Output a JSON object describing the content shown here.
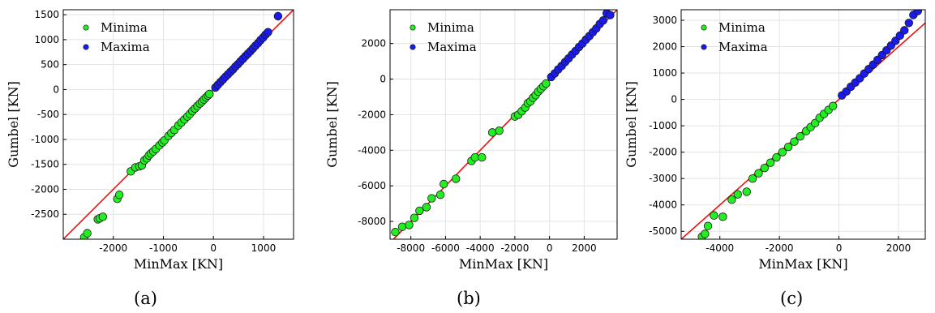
{
  "chart_data": [
    {
      "type": "scatter",
      "caption": "(a)",
      "xlabel": "MinMax [KN]",
      "ylabel": "Gumbel [KN]",
      "xlim": [
        -3000,
        1600
      ],
      "ylim": [
        -3000,
        1600
      ],
      "xticks": [
        -2000,
        -1000,
        0,
        1000
      ],
      "yticks": [
        -2500,
        -2000,
        -1500,
        -1000,
        -500,
        0,
        500,
        1000,
        1500
      ],
      "grid": true,
      "legend": "top-left",
      "reference_line": "y = x",
      "series": [
        {
          "name": "Minima",
          "color": "#22ee22",
          "x": [
            -2580,
            -2520,
            -2310,
            -2270,
            -2210,
            -1920,
            -1880,
            -1650,
            -1560,
            -1480,
            -1430,
            -1380,
            -1330,
            -1290,
            -1250,
            -1200,
            -1150,
            -1080,
            -1020,
            -980,
            -900,
            -840,
            -780,
            -700,
            -640,
            -580,
            -520,
            -470,
            -420,
            -370,
            -320,
            -270,
            -230,
            -190,
            -150,
            -110,
            -80
          ],
          "y": [
            -2960,
            -2880,
            -2600,
            -2580,
            -2550,
            -2190,
            -2110,
            -1640,
            -1560,
            -1540,
            -1520,
            -1420,
            -1380,
            -1320,
            -1280,
            -1240,
            -1190,
            -1120,
            -1060,
            -1020,
            -930,
            -870,
            -810,
            -720,
            -660,
            -600,
            -540,
            -490,
            -430,
            -380,
            -330,
            -280,
            -240,
            -200,
            -160,
            -120,
            -90
          ]
        },
        {
          "name": "Maxima",
          "color": "#1a1aee",
          "x": [
            40,
            90,
            140,
            190,
            240,
            290,
            340,
            390,
            440,
            490,
            540,
            590,
            640,
            690,
            740,
            790,
            840,
            890,
            940,
            990,
            1040,
            1090,
            1290
          ],
          "y": [
            40,
            95,
            150,
            200,
            255,
            305,
            355,
            405,
            460,
            510,
            565,
            615,
            670,
            720,
            770,
            825,
            880,
            930,
            990,
            1040,
            1100,
            1150,
            1470
          ]
        }
      ]
    },
    {
      "type": "scatter",
      "caption": "(b)",
      "xlabel": "MinMax [KN]",
      "ylabel": "Gumbel [KN]",
      "xlim": [
        -9200,
        3900
      ],
      "ylim": [
        -9000,
        3900
      ],
      "xticks": [
        -8000,
        -6000,
        -4000,
        -2000,
        0,
        2000
      ],
      "yticks": [
        -8000,
        -6000,
        -4000,
        -2000,
        0,
        2000
      ],
      "grid": true,
      "legend": "top-left",
      "reference_line": "y = x",
      "series": [
        {
          "name": "Minima",
          "color": "#22ee22",
          "x": [
            -8900,
            -8500,
            -8100,
            -7800,
            -7500,
            -7100,
            -6800,
            -6300,
            -6100,
            -5400,
            -4500,
            -4300,
            -3900,
            -3300,
            -2900,
            -2000,
            -1800,
            -1600,
            -1400,
            -1250,
            -1100,
            -950,
            -800,
            -650,
            -500,
            -350,
            -200
          ],
          "y": [
            -8600,
            -8300,
            -8200,
            -7800,
            -7400,
            -7200,
            -6700,
            -6500,
            -5900,
            -5600,
            -4600,
            -4400,
            -4400,
            -3000,
            -2900,
            -2100,
            -2000,
            -1800,
            -1600,
            -1350,
            -1250,
            -1050,
            -900,
            -700,
            -550,
            -400,
            -250
          ]
        },
        {
          "name": "Maxima",
          "color": "#1a1aee",
          "x": [
            100,
            300,
            500,
            700,
            900,
            1100,
            1300,
            1500,
            1700,
            1900,
            2100,
            2300,
            2500,
            2700,
            2900,
            3100,
            3300,
            3500
          ],
          "y": [
            120,
            320,
            540,
            740,
            960,
            1160,
            1380,
            1580,
            1800,
            2000,
            2220,
            2420,
            2640,
            2850,
            3100,
            3300,
            3700,
            3600
          ]
        }
      ]
    },
    {
      "type": "scatter",
      "caption": "(c)",
      "xlabel": "MinMax [KN]",
      "ylabel": "Gumbel [KN]",
      "xlim": [
        -5300,
        2900
      ],
      "ylim": [
        -5300,
        3400
      ],
      "xticks": [
        -4000,
        -2000,
        0,
        2000
      ],
      "yticks": [
        -5000,
        -4000,
        -3000,
        -2000,
        -1000,
        0,
        1000,
        2000,
        3000
      ],
      "grid": true,
      "legend": "top-left",
      "reference_line": "y = x",
      "series": [
        {
          "name": "Minima",
          "color": "#22ee22",
          "x": [
            -4600,
            -4500,
            -4400,
            -4200,
            -3900,
            -3600,
            -3400,
            -3100,
            -2900,
            -2700,
            -2500,
            -2300,
            -2100,
            -1900,
            -1700,
            -1500,
            -1300,
            -1100,
            -950,
            -800,
            -650,
            -500,
            -350,
            -200
          ],
          "y": [
            -5200,
            -5100,
            -4800,
            -4400,
            -4450,
            -3800,
            -3600,
            -3500,
            -3000,
            -2800,
            -2600,
            -2400,
            -2200,
            -2000,
            -1800,
            -1600,
            -1400,
            -1200,
            -1050,
            -900,
            -700,
            -550,
            -400,
            -250
          ]
        },
        {
          "name": "Maxima",
          "color": "#1a1aee",
          "x": [
            100,
            250,
            400,
            550,
            700,
            850,
            1000,
            1150,
            1300,
            1450,
            1600,
            1750,
            1900,
            2050,
            2200,
            2350,
            2500,
            2650
          ],
          "y": [
            150,
            300,
            480,
            640,
            800,
            980,
            1150,
            1320,
            1500,
            1680,
            1860,
            2040,
            2220,
            2420,
            2620,
            2900,
            3200,
            3350
          ]
        }
      ]
    }
  ]
}
